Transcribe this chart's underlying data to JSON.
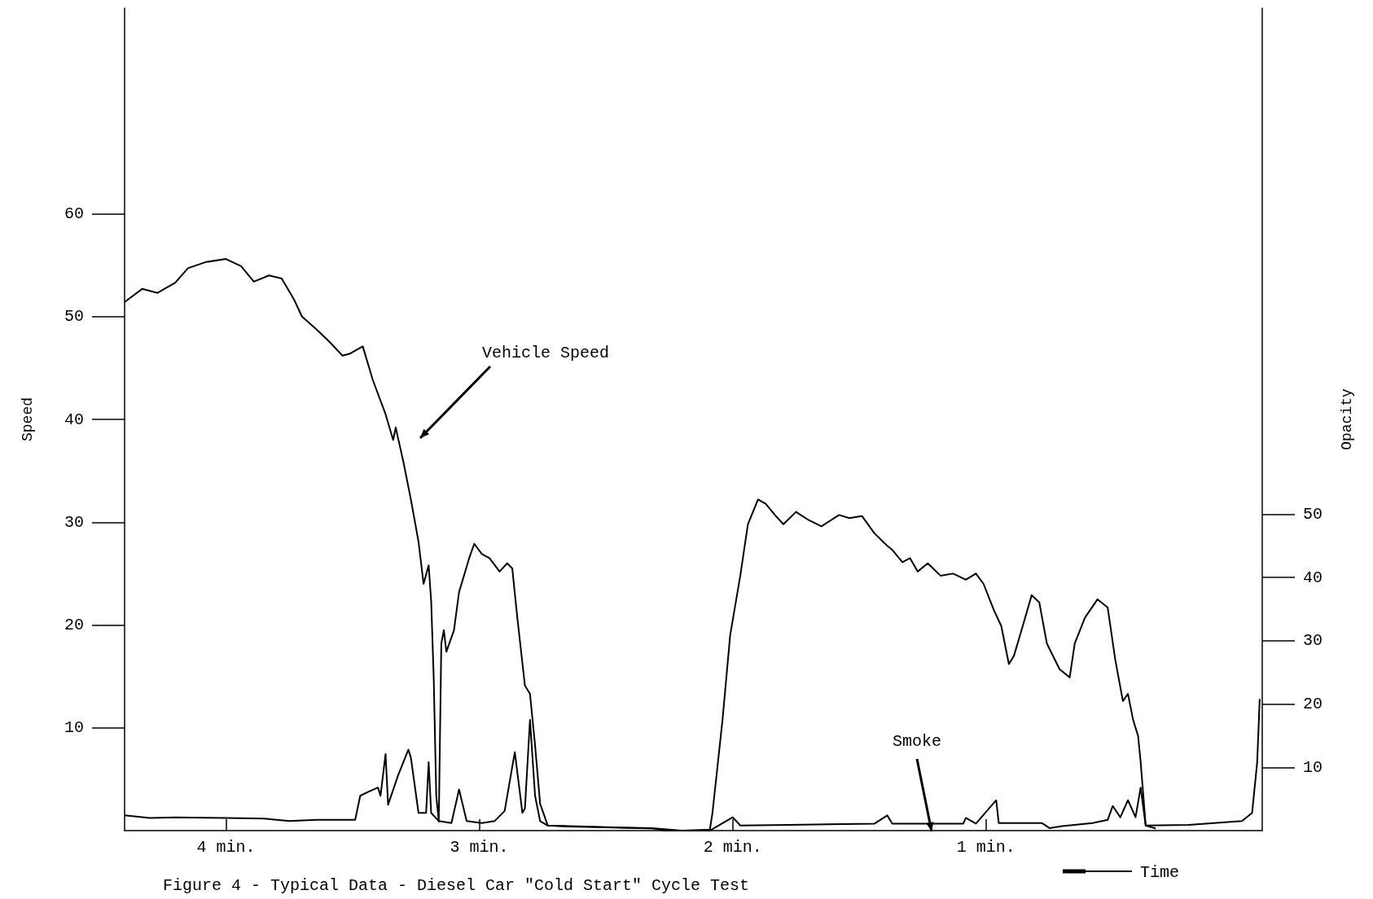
{
  "chart_data": {
    "type": "line",
    "xlabel": "Time",
    "ylabel": "Speed",
    "y2label": "Opacity",
    "xlim": [
      4.4,
      -0.09
    ],
    "xticks": [
      {
        "value": 4,
        "label": "4 min."
      },
      {
        "value": 3,
        "label": "3 min."
      },
      {
        "value": 2,
        "label": "2 min."
      },
      {
        "value": 1,
        "label": "1 min."
      }
    ],
    "ylim": [
      0,
      80
    ],
    "yticks": [
      10,
      20,
      30,
      40,
      50,
      60
    ],
    "y2lim": [
      0,
      130
    ],
    "y2ticks": [
      10,
      20,
      30,
      40,
      50
    ],
    "grid": false,
    "marker": "none",
    "line_style": "solid",
    "series": [
      {
        "color": "#000000",
        "x": [
          4.4,
          4.33,
          4.27,
          4.2,
          4.15,
          4.08,
          4.0,
          3.94,
          3.89,
          3.83,
          3.78,
          3.73,
          3.7,
          3.64,
          3.59,
          3.54,
          3.51,
          3.46,
          3.42,
          3.37,
          3.34,
          3.33,
          3.3,
          3.27,
          3.24,
          3.22,
          3.2,
          3.19,
          3.18,
          3.17,
          3.16,
          3.15,
          3.14,
          3.13,
          3.1,
          3.08,
          3.04,
          3.02,
          2.99,
          2.96,
          2.92,
          2.89,
          2.87,
          2.85,
          2.82,
          2.8,
          2.78,
          2.76,
          2.73,
          2.65,
          2.3,
          2.2,
          2.09,
          2.08,
          2.04,
          2.01,
          1.97,
          1.94,
          1.9,
          1.87,
          1.83,
          1.8,
          1.75,
          1.7,
          1.65,
          1.58,
          1.54,
          1.49,
          1.44,
          1.39,
          1.37,
          1.33,
          1.3,
          1.27,
          1.23,
          1.18,
          1.13,
          1.08,
          1.04,
          1.01,
          0.97,
          0.94,
          0.91,
          0.89,
          0.86,
          0.82,
          0.79,
          0.76,
          0.71,
          0.67,
          0.65,
          0.61,
          0.56,
          0.52,
          0.49,
          0.46,
          0.44,
          0.42,
          0.4,
          0.39,
          0.37,
          0.33
        ],
        "values": [
          51.4,
          52.7,
          52.3,
          53.3,
          54.7,
          55.3,
          55.6,
          54.9,
          53.4,
          54.0,
          53.7,
          51.6,
          50.0,
          48.7,
          47.5,
          46.2,
          46.4,
          47.1,
          43.8,
          40.5,
          38.0,
          39.2,
          35.9,
          32.2,
          28.1,
          24.0,
          25.8,
          22.3,
          14.9,
          3.4,
          0.9,
          18.2,
          19.5,
          17.4,
          19.5,
          23.2,
          26.5,
          27.9,
          26.9,
          26.5,
          25.2,
          26.0,
          25.5,
          20.7,
          14.1,
          13.3,
          8.3,
          2.6,
          0.5,
          0.4,
          0.2,
          0.0,
          0.1,
          1.7,
          10.8,
          19.0,
          24.8,
          29.8,
          32.2,
          31.8,
          30.6,
          29.8,
          31.0,
          30.2,
          29.6,
          30.7,
          30.4,
          30.6,
          28.9,
          27.7,
          27.3,
          26.1,
          26.5,
          25.2,
          26.0,
          24.8,
          25.0,
          24.4,
          25.0,
          24.0,
          21.5,
          19.9,
          16.2,
          17.0,
          19.5,
          22.9,
          22.2,
          18.2,
          15.7,
          14.9,
          18.2,
          20.7,
          22.5,
          21.7,
          16.6,
          12.6,
          13.3,
          10.8,
          9.2,
          6.7,
          0.5,
          0.2
        ]
      },
      {
        "color": "#000000",
        "axis": "y2",
        "x": [
          4.4,
          4.3,
          4.2,
          4.0,
          3.85,
          3.75,
          3.64,
          3.49,
          3.47,
          3.44,
          3.4,
          3.39,
          3.37,
          3.36,
          3.32,
          3.28,
          3.27,
          3.24,
          3.21,
          3.2,
          3.19,
          3.16,
          3.11,
          3.08,
          3.05,
          2.99,
          2.94,
          2.9,
          2.86,
          2.83,
          2.82,
          2.8,
          2.78,
          2.76,
          2.73,
          2.47,
          2.32,
          2.27,
          2.09,
          2.0,
          1.97,
          1.78,
          1.44,
          1.39,
          1.37,
          1.09,
          1.08,
          1.04,
          0.96,
          0.95,
          0.78,
          0.75,
          0.7,
          0.58,
          0.52,
          0.5,
          0.47,
          0.44,
          0.41,
          0.39,
          0.37,
          0.2,
          -0.01,
          -0.05,
          -0.07,
          -0.08
        ],
        "values": [
          2.4,
          2.0,
          2.1,
          2.0,
          1.9,
          1.5,
          1.7,
          1.7,
          5.5,
          6.1,
          6.8,
          5.5,
          12.1,
          4.1,
          8.8,
          12.8,
          11.5,
          2.8,
          2.8,
          10.8,
          2.8,
          1.5,
          1.2,
          6.5,
          1.5,
          1.2,
          1.5,
          3.1,
          12.4,
          2.8,
          3.5,
          17.5,
          5.5,
          1.5,
          0.8,
          0.5,
          0.4,
          0.0,
          0.0,
          2.1,
          0.8,
          0.9,
          1.1,
          2.4,
          1.1,
          1.1,
          2.0,
          1.1,
          4.8,
          1.2,
          1.2,
          0.4,
          0.7,
          1.2,
          1.7,
          3.9,
          2.1,
          4.8,
          2.1,
          6.8,
          0.8,
          0.9,
          1.5,
          2.8,
          10.8,
          20.8
        ]
      }
    ],
    "annotations": [
      "Vehicle Speed",
      "Smoke",
      "Figure 4 - Typical Data - Diesel Car \"Cold Start\" Cycle Test"
    ]
  }
}
